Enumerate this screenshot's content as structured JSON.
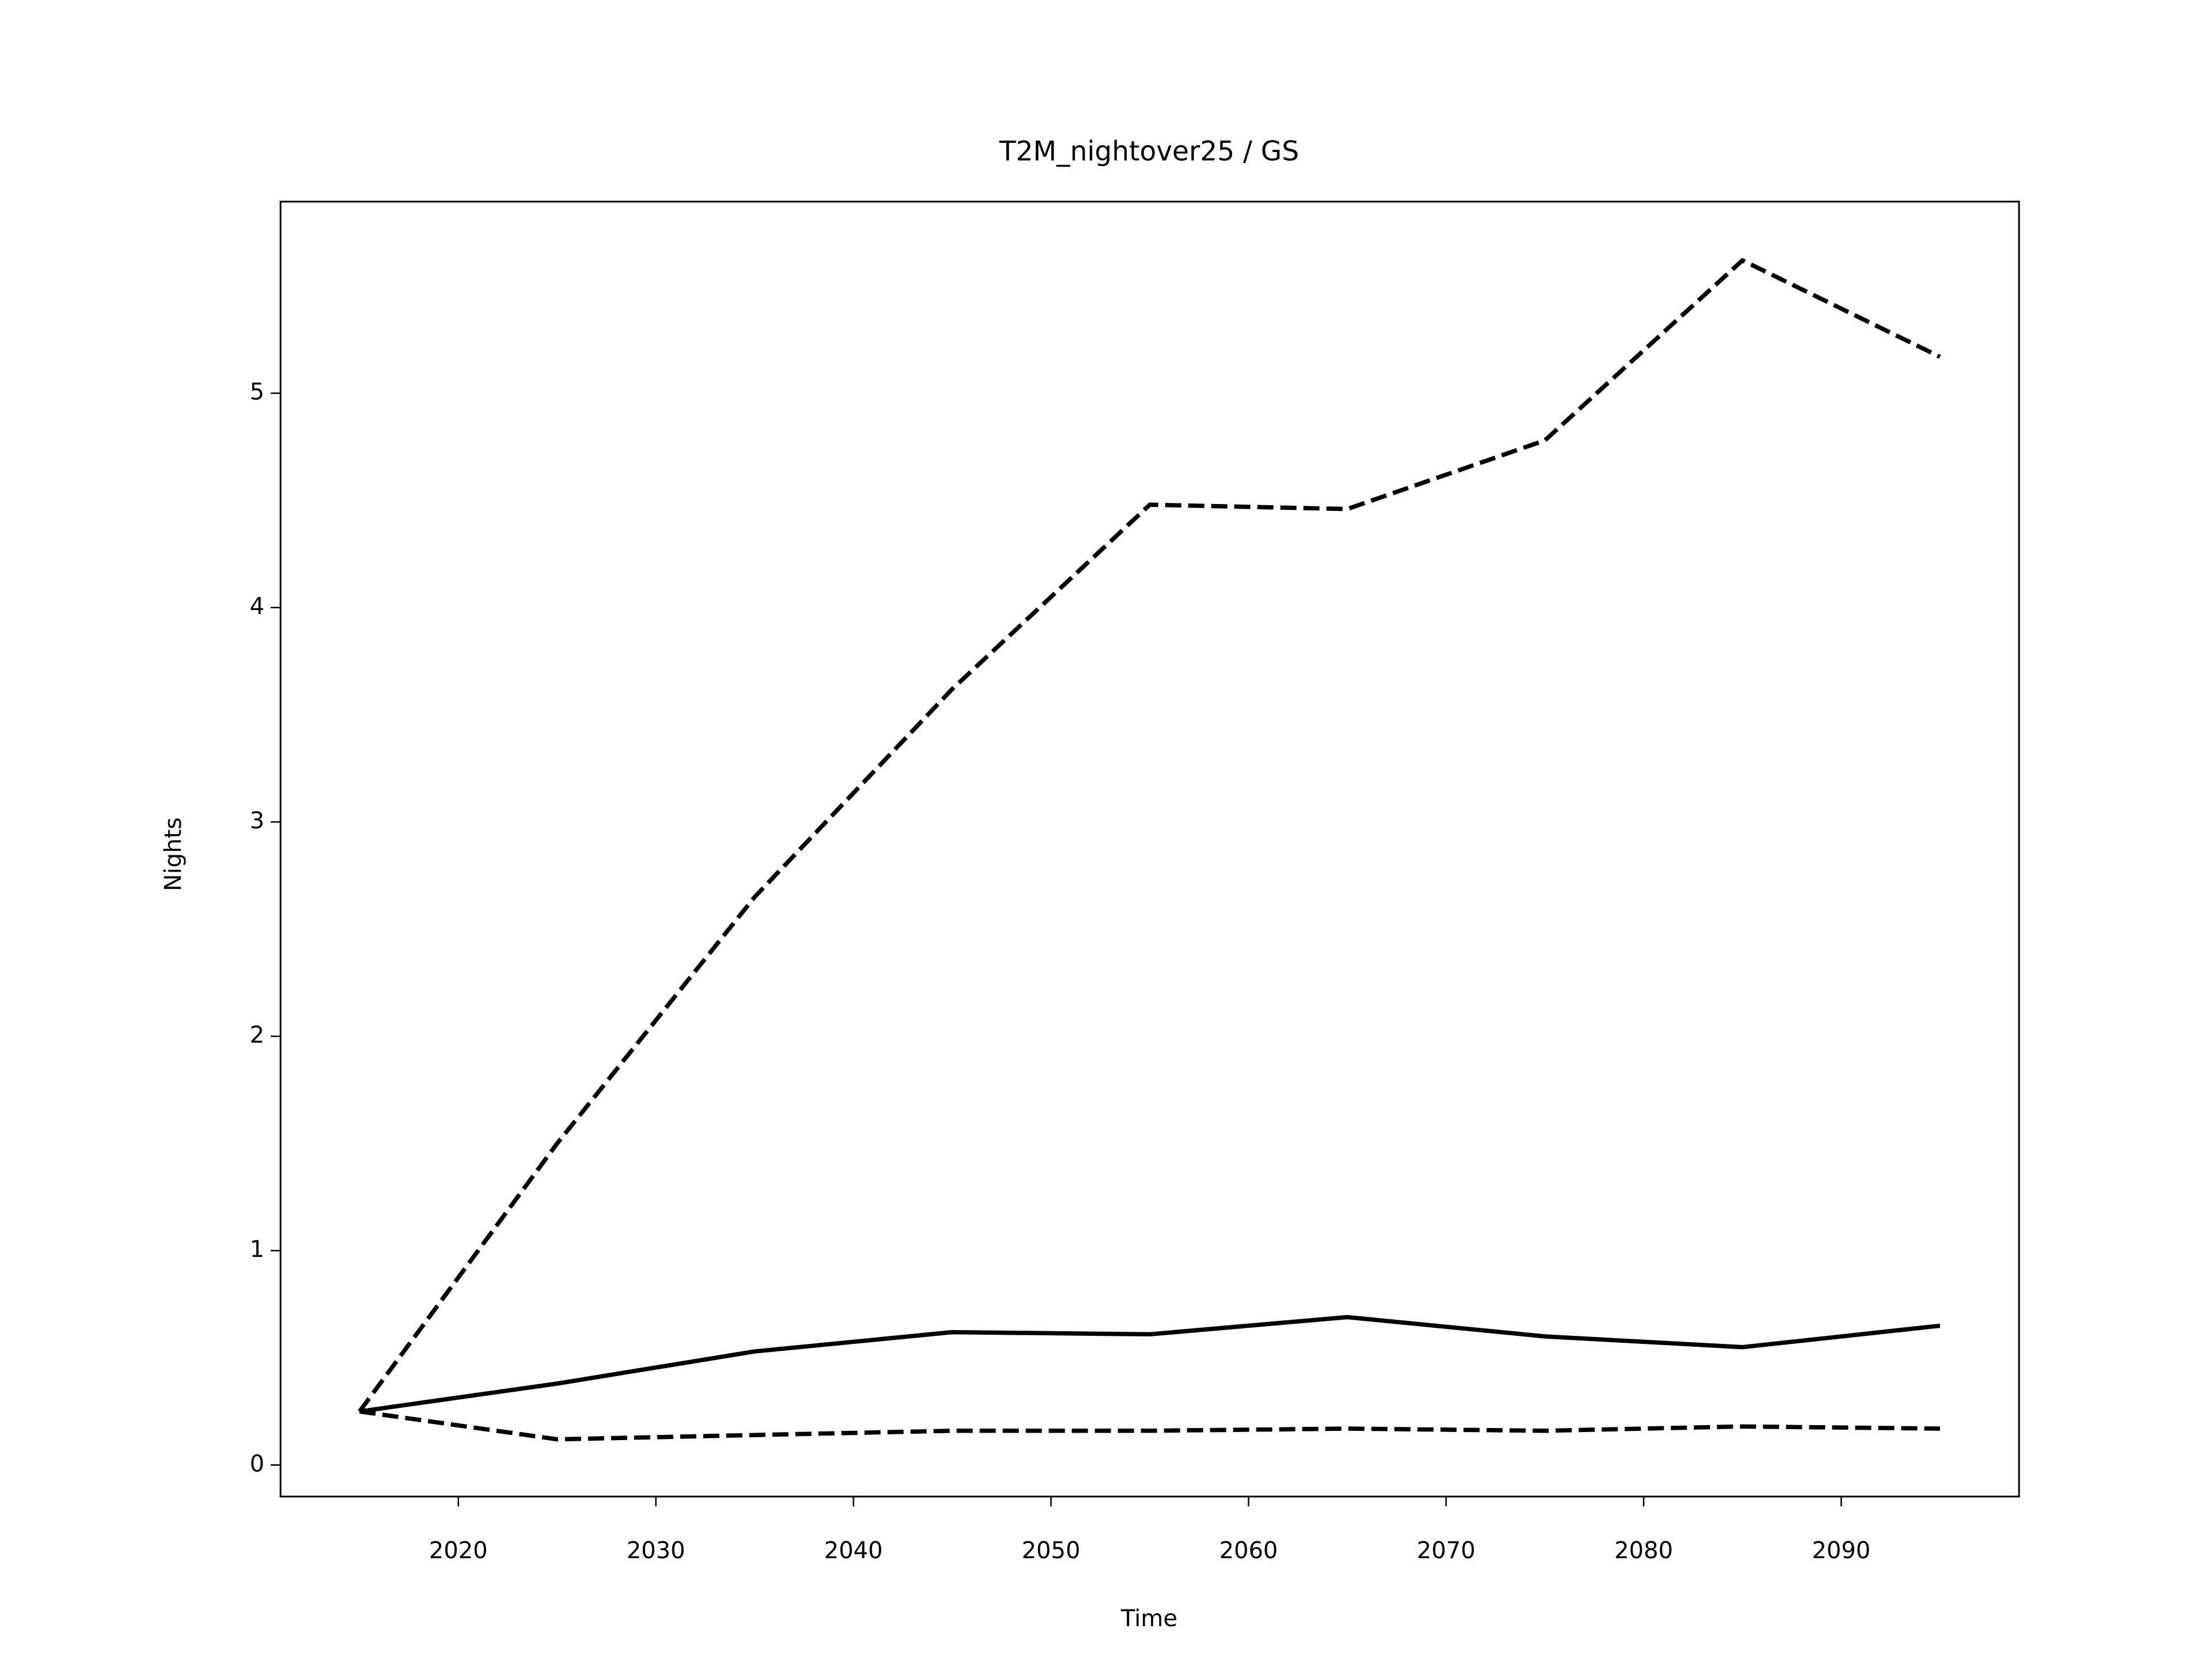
{
  "chart_data": {
    "type": "line",
    "title": "T2M_nightover25 / GS",
    "x_label": "Time",
    "y_label": "Nights",
    "x": [
      2015,
      2025,
      2035,
      2045,
      2055,
      2065,
      2075,
      2085,
      2095
    ],
    "series": [
      {
        "color": "#000000",
        "dash": true,
        "values": [
          0.25,
          1.5,
          2.65,
          3.62,
          4.48,
          4.46,
          4.78,
          5.62,
          5.17
        ]
      },
      {
        "color": "#000000",
        "dash": false,
        "values": [
          0.25,
          0.38,
          0.53,
          0.62,
          0.61,
          0.69,
          0.6,
          0.55,
          0.65
        ]
      },
      {
        "color": "#000000",
        "dash": true,
        "values": [
          0.25,
          0.12,
          0.14,
          0.16,
          0.16,
          0.17,
          0.16,
          0.18,
          0.17
        ]
      }
    ],
    "xlim": [
      2011,
      2099
    ],
    "xticks": [
      2020,
      2030,
      2040,
      2050,
      2060,
      2070,
      2080,
      2090
    ],
    "ylim": [
      -0.147,
      5.894
    ],
    "yticks": [
      0,
      1,
      2,
      3,
      4,
      5
    ],
    "grid": false
  }
}
